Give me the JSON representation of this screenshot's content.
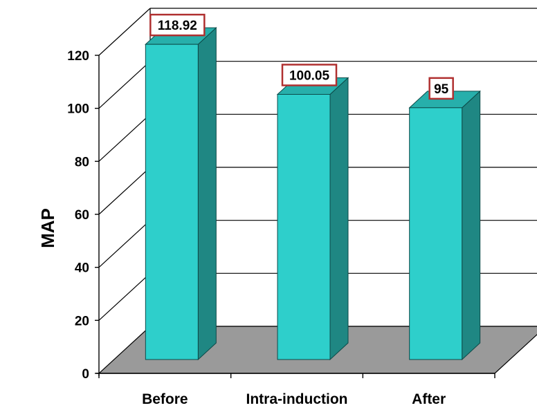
{
  "chart_data": {
    "type": "bar",
    "categories": [
      "Before",
      "Intra-induction",
      "After"
    ],
    "values": [
      118.92,
      100.05,
      95
    ],
    "value_labels": [
      "118.92",
      "100.05",
      "95"
    ],
    "title": "",
    "xlabel": "",
    "ylabel": "MAP",
    "ylim": [
      0,
      120
    ],
    "yticks": [
      0,
      20,
      40,
      60,
      80,
      100,
      120
    ],
    "grid": true,
    "legend": "none",
    "style": "3d-column",
    "colors": {
      "bar_front": "#2ECFCB",
      "bar_side": "#1F8783",
      "bar_top": "#27AFAB",
      "floor": "#9A9A9A",
      "label_border": "#B03030"
    }
  }
}
